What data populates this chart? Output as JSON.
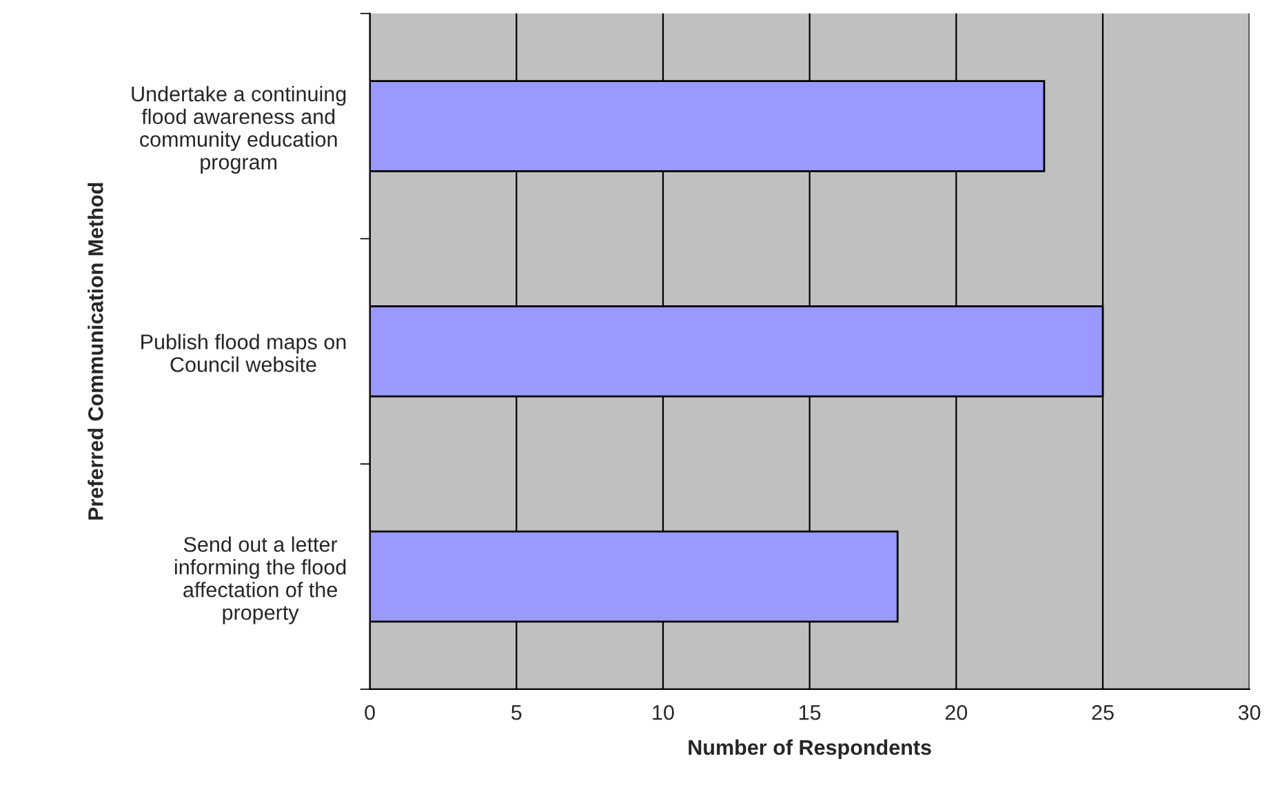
{
  "chart_data": {
    "type": "bar",
    "orientation": "horizontal",
    "xlabel": "Number of Respondents",
    "ylabel": "Preferred Communication Method",
    "categories": [
      "Undertake a continuing\nflood awareness and\ncommunity education\nprogram",
      "Publish flood maps on\nCouncil website",
      "Send out a letter\ninforming the flood\naffectation of the\nproperty"
    ],
    "values": [
      23,
      25,
      18
    ],
    "color": "#9999ff",
    "xlim": [
      0,
      30
    ],
    "xticks": [
      0,
      5,
      10,
      15,
      20,
      25,
      30
    ],
    "grid": "x"
  }
}
